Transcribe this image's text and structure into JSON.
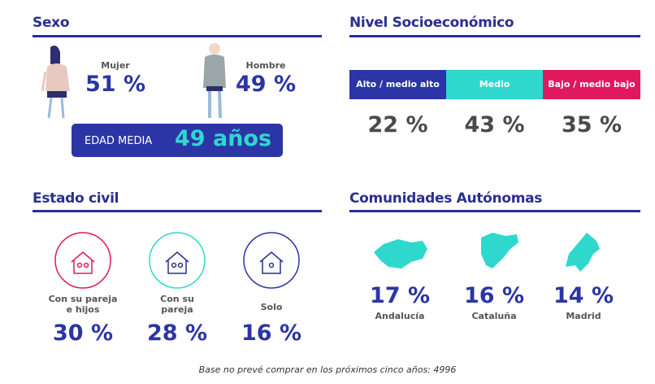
{
  "sections": {
    "sexo": {
      "title": "Sexo",
      "items": [
        {
          "label": "Mujer",
          "value": "51 %"
        },
        {
          "label": "Hombre",
          "value": "49 %"
        }
      ],
      "age": {
        "label": "EDAD MEDIA",
        "value": "49 años"
      }
    },
    "nivel": {
      "title": "Nivel Socioeconómico",
      "items": [
        {
          "label": "Alto / medio alto",
          "value": "22 %"
        },
        {
          "label": "Medio",
          "value": "43 %"
        },
        {
          "label": "Bajo / medio bajo",
          "value": "35 %"
        }
      ]
    },
    "estado": {
      "title": "Estado civil",
      "items": [
        {
          "label": "Con su pareja e hijos",
          "value": "30 %"
        },
        {
          "label": "Con su pareja",
          "value": "28 %"
        },
        {
          "label": "Solo",
          "value": "16 %"
        }
      ]
    },
    "comunidades": {
      "title": "Comunidades Autónomas",
      "items": [
        {
          "label": "Andalucía",
          "value": "17 %"
        },
        {
          "label": "Cataluña",
          "value": "16 %"
        },
        {
          "label": "Madrid",
          "value": "14 %"
        }
      ]
    }
  },
  "footer": "Base no prevé comprar en los próximos cinco años: 4996"
}
